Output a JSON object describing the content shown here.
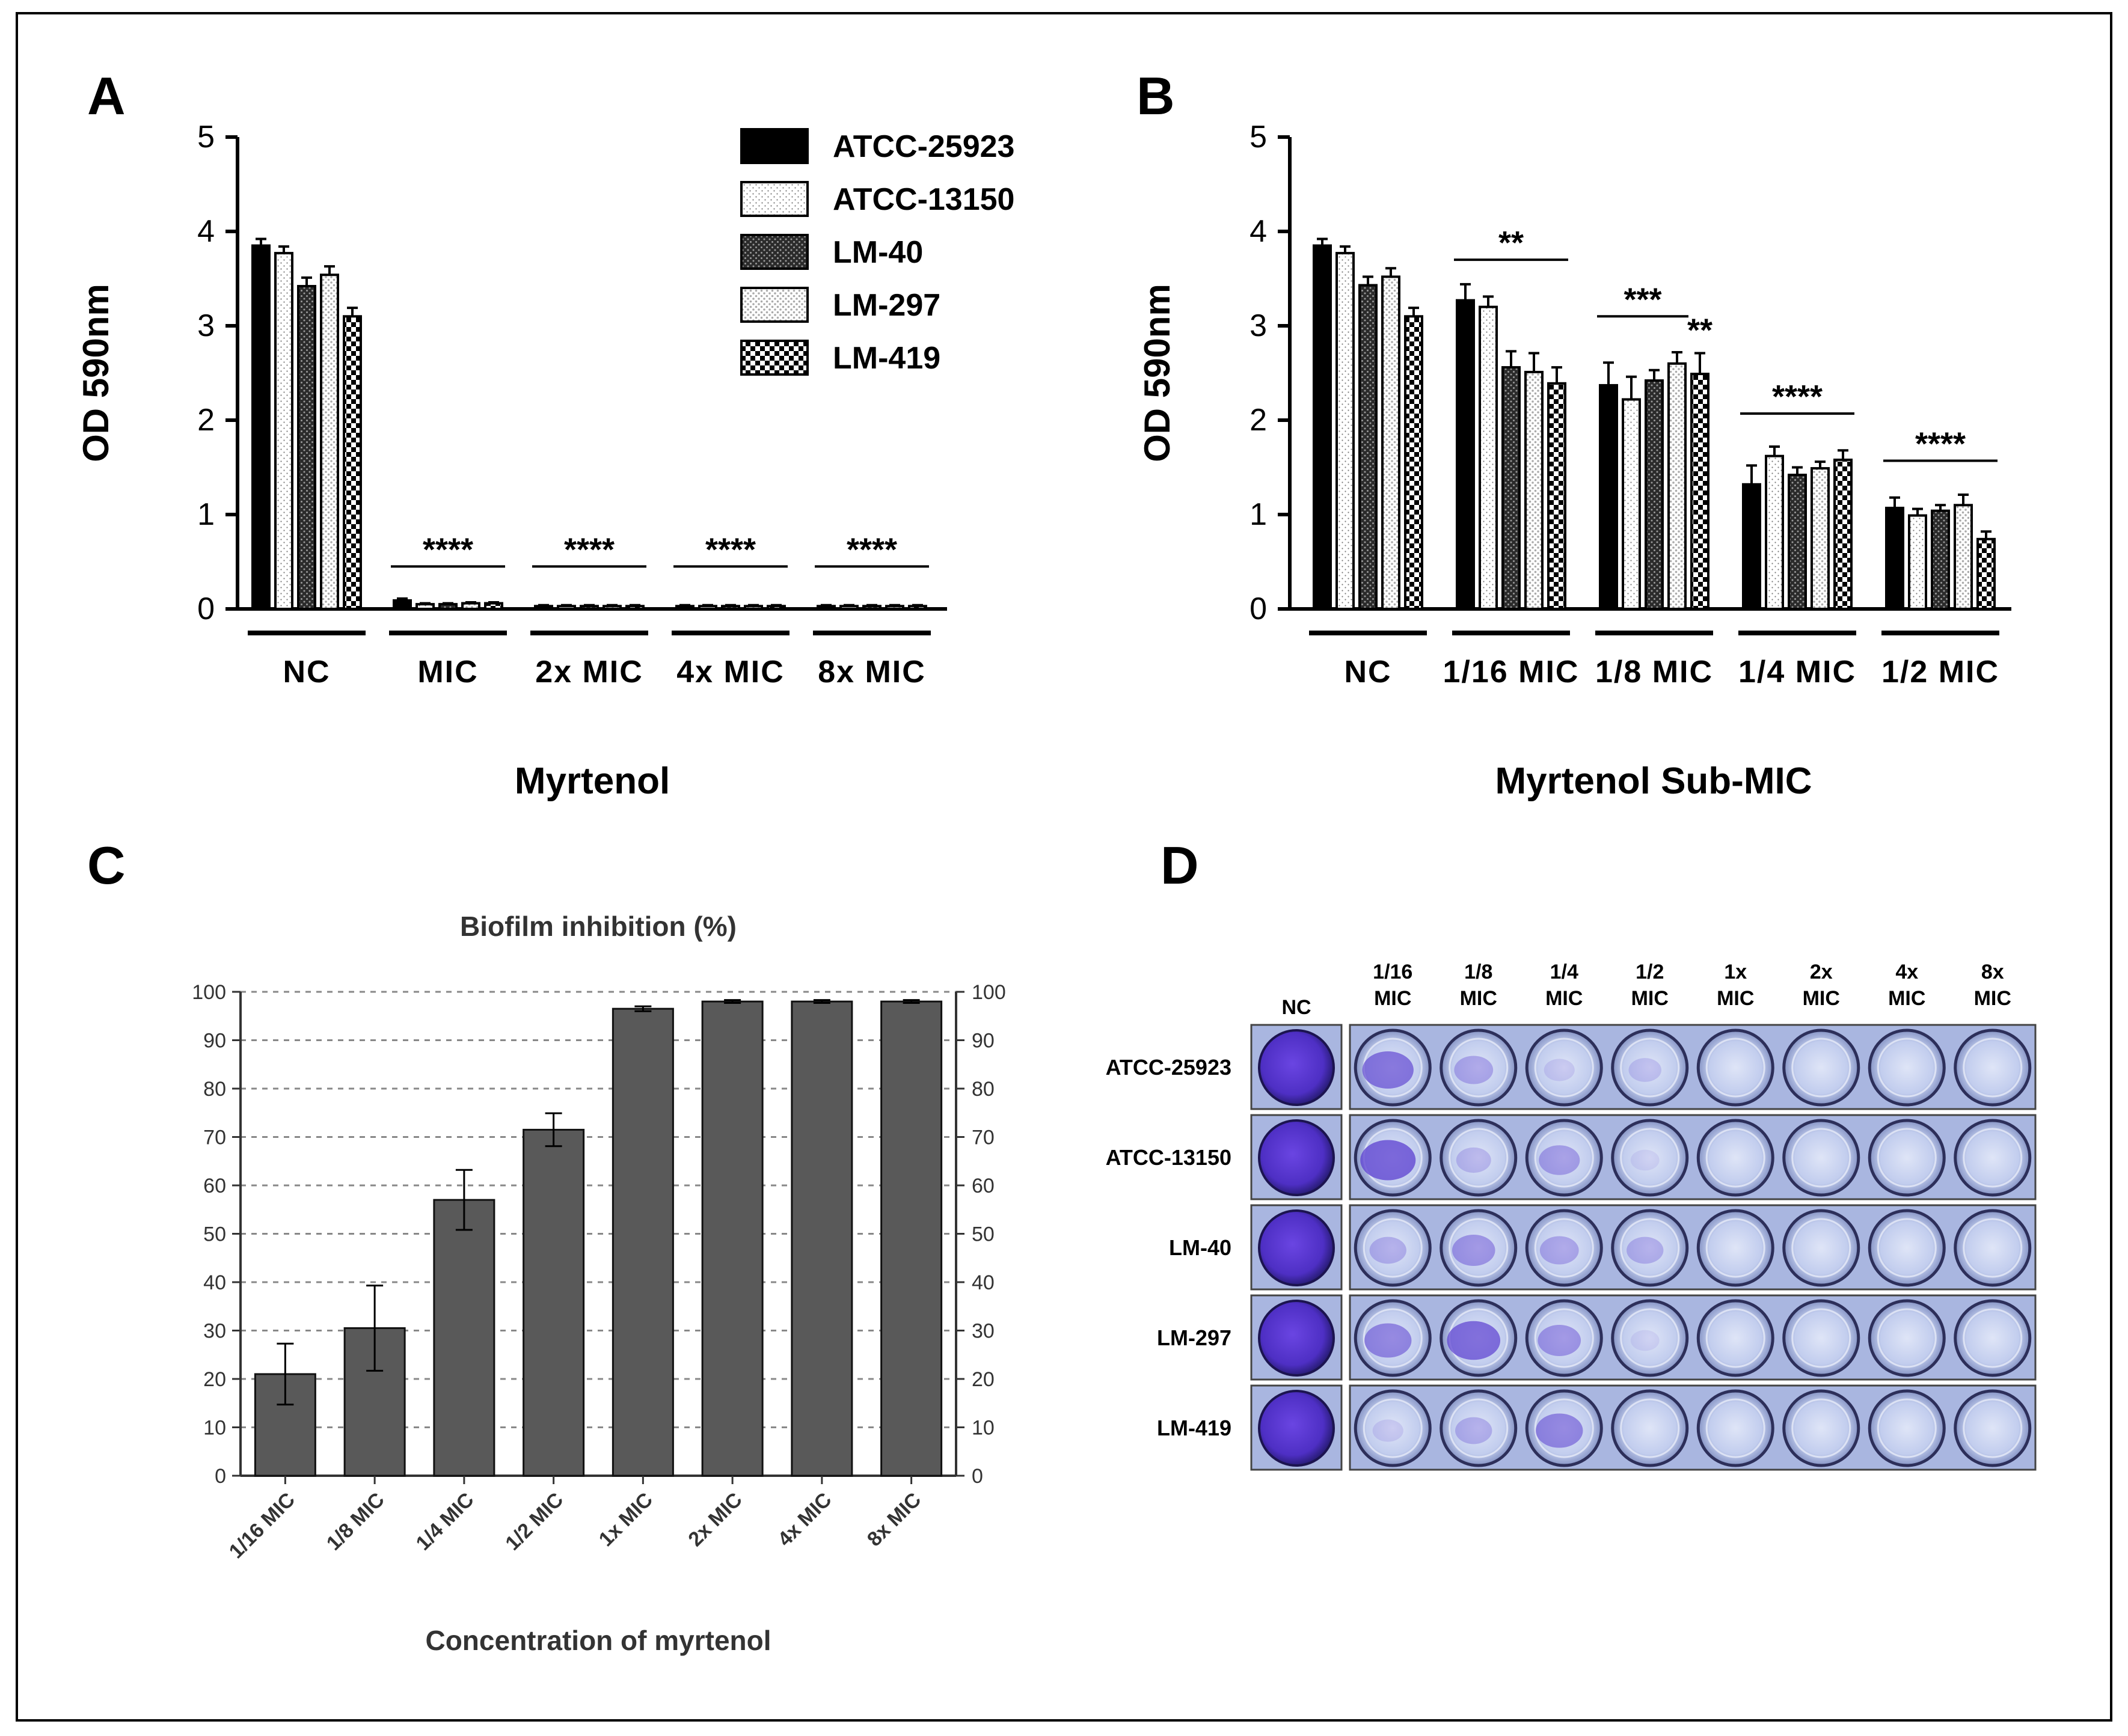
{
  "panel_letters": [
    "A",
    "B",
    "C",
    "D"
  ],
  "legend": {
    "entries": [
      "ATCC-25923",
      "ATCC-13150",
      "LM-40",
      "LM-297",
      "LM-419"
    ],
    "patterns": [
      "solid",
      "fine-dots",
      "dark-hatch",
      "light-dots",
      "checker"
    ]
  },
  "colors": {
    "bar_dark": "#000000",
    "bar_gray": "#595959",
    "crystal_violet": "#5b3fd0",
    "well_light": "#c9d2ee",
    "plate_bg": "#a9b6e0"
  },
  "chart_data": [
    {
      "id": "A",
      "type": "bar",
      "title": "",
      "xlabel": "Myrtenol",
      "ylabel": "OD 590nm",
      "ylim": [
        0,
        5
      ],
      "yticks": [
        "0",
        "1",
        "2",
        "3",
        "4",
        "5"
      ],
      "categories": [
        "NC",
        "MIC",
        "2x MIC",
        "4x MIC",
        "8x MIC"
      ],
      "series": [
        {
          "name": "ATCC-25923",
          "values": [
            3.85,
            0.09,
            0.03,
            0.03,
            0.03
          ],
          "errors": [
            0.07,
            0.02,
            0.01,
            0.01,
            0.01
          ]
        },
        {
          "name": "ATCC-13150",
          "values": [
            3.77,
            0.05,
            0.03,
            0.03,
            0.03
          ],
          "errors": [
            0.07,
            0.01,
            0.01,
            0.01,
            0.01
          ]
        },
        {
          "name": "LM-40",
          "values": [
            3.42,
            0.05,
            0.03,
            0.03,
            0.03
          ],
          "errors": [
            0.09,
            0.01,
            0.01,
            0.01,
            0.01
          ]
        },
        {
          "name": "LM-297",
          "values": [
            3.54,
            0.06,
            0.03,
            0.03,
            0.03
          ],
          "errors": [
            0.09,
            0.01,
            0.01,
            0.01,
            0.01
          ]
        },
        {
          "name": "LM-419",
          "values": [
            3.1,
            0.06,
            0.03,
            0.03,
            0.03
          ],
          "errors": [
            0.09,
            0.01,
            0.01,
            0.01,
            0.01
          ]
        }
      ],
      "significance": [
        {
          "category": "MIC",
          "label": "****",
          "y": 0.45
        },
        {
          "category": "2x MIC",
          "label": "****",
          "y": 0.45
        },
        {
          "category": "4x MIC",
          "label": "****",
          "y": 0.45
        },
        {
          "category": "8x MIC",
          "label": "****",
          "y": 0.45
        }
      ]
    },
    {
      "id": "B",
      "type": "bar",
      "title": "",
      "xlabel": "Myrtenol Sub-MIC",
      "ylabel": "OD 590nm",
      "ylim": [
        0,
        5
      ],
      "yticks": [
        "0",
        "1",
        "2",
        "3",
        "4",
        "5"
      ],
      "categories": [
        "NC",
        "1/16 MIC",
        "1/8 MIC",
        "1/4 MIC",
        "1/2 MIC"
      ],
      "series": [
        {
          "name": "ATCC-25923",
          "values": [
            3.85,
            3.27,
            2.37,
            1.32,
            1.07
          ],
          "errors": [
            0.07,
            0.17,
            0.24,
            0.2,
            0.11
          ]
        },
        {
          "name": "ATCC-13150",
          "values": [
            3.77,
            3.2,
            2.22,
            1.62,
            0.99
          ],
          "errors": [
            0.07,
            0.11,
            0.24,
            0.1,
            0.07
          ]
        },
        {
          "name": "LM-40",
          "values": [
            3.43,
            2.56,
            2.42,
            1.42,
            1.04
          ],
          "errors": [
            0.09,
            0.17,
            0.11,
            0.08,
            0.06
          ]
        },
        {
          "name": "LM-297",
          "values": [
            3.52,
            2.51,
            2.6,
            1.49,
            1.1
          ],
          "errors": [
            0.09,
            0.2,
            0.12,
            0.07,
            0.11
          ]
        },
        {
          "name": "LM-419",
          "values": [
            3.1,
            2.39,
            2.49,
            1.58,
            0.74
          ],
          "errors": [
            0.09,
            0.17,
            0.22,
            0.1,
            0.08
          ]
        }
      ],
      "significance": [
        {
          "from": "1/16 MIC",
          "label": "**",
          "y": 3.7,
          "span": "all"
        },
        {
          "from": "1/8 MIC",
          "label": "***",
          "y": 3.1,
          "span": "first4"
        },
        {
          "from": "1/8 MIC",
          "label": "**",
          "y": 2.8,
          "span": "last"
        },
        {
          "from": "1/4 MIC",
          "label": "****",
          "y": 2.07,
          "span": "all"
        },
        {
          "from": "1/2 MIC",
          "label": "****",
          "y": 1.57,
          "span": "all"
        }
      ]
    },
    {
      "id": "C",
      "type": "bar",
      "title": "Biofilm inhibition (%)",
      "xlabel": "Concentration of myrtenol",
      "ylabel": "",
      "ylim": [
        0,
        100
      ],
      "yticks": [
        "0",
        "10",
        "20",
        "30",
        "40",
        "50",
        "60",
        "70",
        "80",
        "90",
        "100"
      ],
      "grid": true,
      "categories": [
        "1/16 MIC",
        "1/8 MIC",
        "1/4 MIC",
        "1/2 MIC",
        "1x MIC",
        "2x MIC",
        "4x MIC",
        "8x MIC"
      ],
      "values": [
        21,
        30.5,
        57,
        71.5,
        96.5,
        98,
        98,
        98
      ],
      "errors": [
        6.3,
        8.8,
        6.2,
        3.4,
        0.5,
        0.3,
        0.3,
        0.3
      ]
    }
  ],
  "panel_d": {
    "nc_label": "NC",
    "columns": [
      [
        "1/16",
        "MIC"
      ],
      [
        "1/8",
        "MIC"
      ],
      [
        "1/4",
        "MIC"
      ],
      [
        "1/2",
        "MIC"
      ],
      [
        "1x",
        "MIC"
      ],
      [
        "2x",
        "MIC"
      ],
      [
        "4x",
        "MIC"
      ],
      [
        "8x",
        "MIC"
      ]
    ],
    "rows": [
      "ATCC-25923",
      "ATCC-13150",
      "LM-40",
      "LM-297",
      "LM-419"
    ],
    "stain_levels": [
      [
        0.65,
        0.35,
        0.15,
        0.2,
        0.05,
        0.05,
        0.05,
        0.05
      ],
      [
        0.75,
        0.25,
        0.4,
        0.1,
        0.05,
        0.05,
        0.05,
        0.05
      ],
      [
        0.3,
        0.45,
        0.35,
        0.3,
        0.05,
        0.05,
        0.05,
        0.05
      ],
      [
        0.55,
        0.7,
        0.45,
        0.1,
        0.05,
        0.05,
        0.05,
        0.05
      ],
      [
        0.15,
        0.3,
        0.55,
        0.05,
        0.05,
        0.05,
        0.05,
        0.05
      ]
    ]
  }
}
